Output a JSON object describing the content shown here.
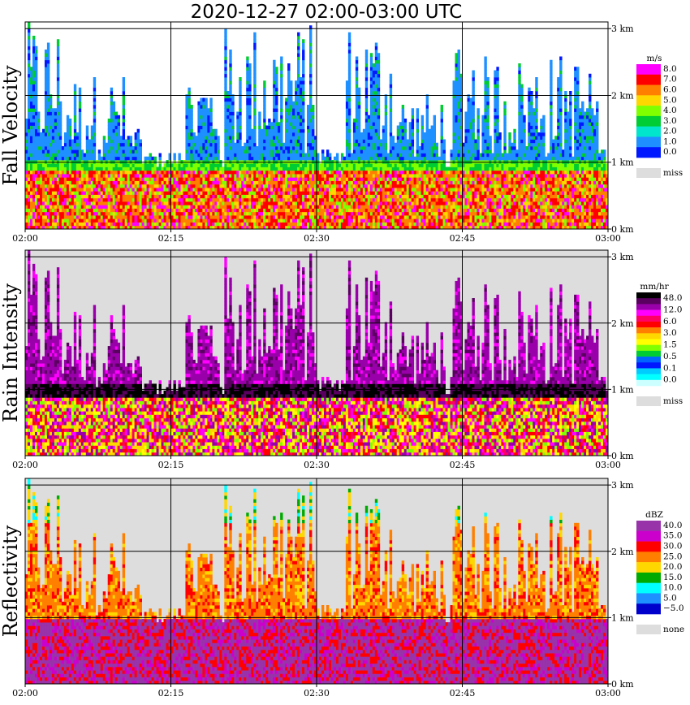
{
  "title": "2020-12-27   02:00-03:00 UTC",
  "chart_data": [
    {
      "type": "heatmap",
      "title": "Fall Velocity",
      "xlabel": "",
      "ylabel": "",
      "x_ticks": [
        "02:00",
        "02:15",
        "02:30",
        "02:45",
        "03:00"
      ],
      "y_ticks": [
        "0 km",
        "1 km",
        "2 km",
        "3 km"
      ],
      "ylim": [
        0,
        3.1
      ],
      "grid": true,
      "legend": {
        "unit": "m/s",
        "placement": "right",
        "levels": [
          "8.0",
          "7.0",
          "6.0",
          "5.0",
          "4.0",
          "3.0",
          "2.0",
          "1.0",
          "0.0"
        ],
        "colors": [
          "#ff00ff",
          "#ff0000",
          "#ff7f00",
          "#ffd700",
          "#7fff00",
          "#00cc33",
          "#00e5cc",
          "#1e90ff",
          "#0018ff"
        ],
        "missing_label": "miss",
        "missing_color": "#dddddd"
      }
    },
    {
      "type": "heatmap",
      "title": "Rain Intensity",
      "xlabel": "",
      "ylabel": "",
      "x_ticks": [
        "02:00",
        "02:15",
        "02:30",
        "02:45",
        "03:00"
      ],
      "y_ticks": [
        "0 km",
        "1 km",
        "2 km",
        "3 km"
      ],
      "ylim": [
        0,
        3.1
      ],
      "grid": true,
      "legend": {
        "unit": "mm/hr",
        "placement": "right",
        "levels": [
          "48.0",
          "12.0",
          "6.0",
          "3.0",
          "1.5",
          "0.5",
          "0.1",
          "0.0"
        ],
        "colors": [
          "#000000",
          "#5a0060",
          "#9900aa",
          "#ff00ff",
          "#ff0066",
          "#ff0000",
          "#ff8000",
          "#ffd700",
          "#ffff00",
          "#7fff00",
          "#00cc33",
          "#0064ff",
          "#0018ff",
          "#00ccff",
          "#00ffff",
          "#ccffff"
        ],
        "missing_label": "miss",
        "missing_color": "#dddddd"
      }
    },
    {
      "type": "heatmap",
      "title": "Reflectivity",
      "xlabel": "",
      "ylabel": "",
      "x_ticks": [
        "02:00",
        "02:15",
        "02:30",
        "02:45",
        "03:00"
      ],
      "y_ticks": [
        "0 km",
        "1 km",
        "2 km",
        "3 km"
      ],
      "ylim": [
        0,
        3.1
      ],
      "grid": true,
      "legend": {
        "unit": "dBZ",
        "placement": "right",
        "levels": [
          "40.0",
          "35.0",
          "30.0",
          "25.0",
          "20.0",
          "15.0",
          "10.0",
          "5.0",
          "−5.0"
        ],
        "colors": [
          "#9933aa",
          "#cc00cc",
          "#ff0000",
          "#ff7f00",
          "#ffd700",
          "#00aa00",
          "#00ffff",
          "#1e90ff",
          "#0000cc"
        ],
        "missing_label": "none",
        "missing_color": "#dddddd"
      }
    }
  ]
}
